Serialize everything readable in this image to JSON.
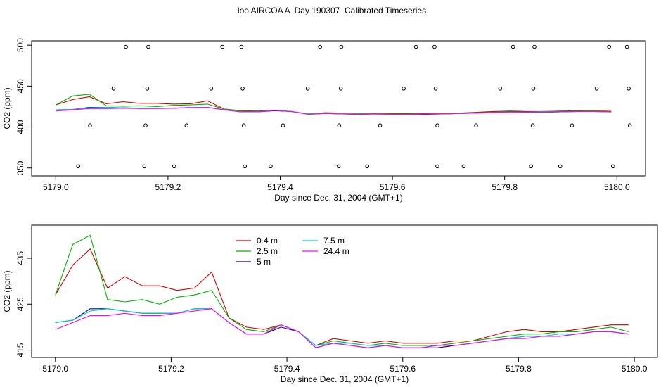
{
  "title": "loo AIRCOA A  Day 190307  Calibrated Timeseries",
  "chart_data": [
    {
      "type": "line",
      "xlabel": "Day since Dec. 31, 2004 (GMT+1)",
      "ylabel": "CO2 (ppm)",
      "xlim": [
        5178.957,
        5180.051
      ],
      "ylim": [
        340.3,
        505.3
      ],
      "xticks": [
        {
          "value": 5179.0,
          "label": "5179.0"
        },
        {
          "value": 5179.2,
          "label": "5179.2"
        },
        {
          "value": 5179.4,
          "label": "5179.4"
        },
        {
          "value": 5179.6,
          "label": "5179.6"
        },
        {
          "value": 5179.8,
          "label": "5179.8"
        },
        {
          "value": 5180.0,
          "label": "5180.0"
        }
      ],
      "yticks": [
        350,
        400,
        450,
        500
      ],
      "x": [
        5179.0,
        5179.03,
        5179.06,
        5179.09,
        5179.12,
        5179.15,
        5179.18,
        5179.21,
        5179.24,
        5179.27,
        5179.3,
        5179.33,
        5179.36,
        5179.39,
        5179.42,
        5179.45,
        5179.48,
        5179.51,
        5179.54,
        5179.57,
        5179.6,
        5179.63,
        5179.66,
        5179.69,
        5179.72,
        5179.75,
        5179.78,
        5179.81,
        5179.84,
        5179.87,
        5179.9,
        5179.93,
        5179.96,
        5179.99
      ],
      "series": [
        {
          "color": "#cc0000",
          "values": [
            427,
            433.5,
            437,
            428.5,
            431,
            429,
            429,
            428,
            428.5,
            432,
            422,
            420,
            419.5,
            420.5,
            419,
            416,
            417.5,
            417,
            416.5,
            417,
            416.5,
            416.5,
            416.5,
            417,
            417,
            418,
            419,
            419.5,
            419,
            419,
            419.5,
            420,
            420.5,
            420.5
          ]
        },
        {
          "color": "#00b000",
          "values": [
            427,
            438,
            440,
            426,
            425.5,
            426,
            425,
            426.5,
            427,
            428,
            422,
            419.5,
            419,
            420.5,
            419,
            416,
            417,
            416.5,
            416,
            416.5,
            416,
            416,
            416,
            416.5,
            417,
            417.5,
            418,
            418.5,
            418.5,
            419,
            419,
            419.5,
            420,
            419
          ]
        },
        {
          "color": "#00008b",
          "values": [
            421,
            421.5,
            424,
            424,
            423.5,
            423,
            423,
            423,
            424,
            424,
            421,
            418.5,
            418.5,
            420,
            419,
            415.5,
            416.5,
            416,
            415.5,
            416,
            415.5,
            415.5,
            415.5,
            416,
            416.5,
            417,
            417.5,
            418,
            418,
            418,
            418.5,
            419,
            419,
            418.5
          ]
        },
        {
          "color": "#00cccc",
          "values": [
            421,
            421.5,
            423.5,
            424,
            423.5,
            423,
            423,
            423,
            424,
            424,
            421,
            418.5,
            418.5,
            420.5,
            419,
            416,
            416.5,
            416.5,
            416,
            416,
            415.5,
            415.5,
            416,
            416,
            416.5,
            417,
            417.5,
            418,
            418,
            418.5,
            418.5,
            419,
            419,
            418.5
          ]
        },
        {
          "color": "#ff00ff",
          "values": [
            419.5,
            421,
            422.5,
            422.5,
            423,
            422.5,
            422.5,
            423,
            423.5,
            424,
            421,
            418.5,
            418.5,
            420.5,
            419,
            415.5,
            416.5,
            416,
            415.5,
            416,
            415.5,
            415.5,
            416,
            416,
            416.5,
            417,
            417.5,
            417.5,
            418,
            418,
            418.5,
            419,
            419,
            418.5
          ]
        }
      ],
      "points": {
        "color": "#000000",
        "x": [
          5179.04,
          5179.158,
          5179.211,
          5179.337,
          5179.383,
          5179.504,
          5179.555,
          5179.68,
          5179.727,
          5179.847,
          5179.899,
          5179.993,
          5179.061,
          5179.16,
          5179.233,
          5179.335,
          5179.405,
          5179.505,
          5179.578,
          5179.68,
          5179.749,
          5179.85,
          5179.92,
          5180.023,
          5179.103,
          5179.163,
          5179.277,
          5179.333,
          5179.449,
          5179.508,
          5179.62,
          5179.677,
          5179.792,
          5179.851,
          5179.964,
          5180.021,
          5179.125,
          5179.165,
          5179.297,
          5179.331,
          5179.471,
          5179.509,
          5179.642,
          5179.675,
          5179.815,
          5179.853,
          5179.986,
          5180.018
        ],
        "values": [
          352,
          352,
          352,
          352,
          352,
          352,
          352,
          352,
          352,
          352,
          352,
          352,
          402,
          402,
          402,
          402,
          402,
          402,
          402,
          402,
          402,
          402,
          402,
          402,
          447,
          447,
          447,
          447,
          447,
          447,
          447,
          447,
          447,
          447,
          447,
          447,
          498,
          498,
          498,
          498,
          498,
          498,
          498,
          498,
          498,
          498,
          498,
          498
        ]
      }
    },
    {
      "type": "line",
      "xlabel": "Day since Dec. 31, 2004 (GMT+1)",
      "ylabel": "CO2 (ppm)",
      "xlim": [
        5178.959,
        5180.04
      ],
      "ylim": [
        413.4,
        442.2
      ],
      "xticks": [
        {
          "value": 5179.0,
          "label": "5179.0"
        },
        {
          "value": 5179.2,
          "label": "5179.2"
        },
        {
          "value": 5179.4,
          "label": "5179.4"
        },
        {
          "value": 5179.6,
          "label": "5179.6"
        },
        {
          "value": 5179.8,
          "label": "5179.8"
        },
        {
          "value": 5180.0,
          "label": "5180.0"
        }
      ],
      "yticks": [
        415,
        425,
        435
      ],
      "x": [
        5179.0,
        5179.03,
        5179.06,
        5179.09,
        5179.12,
        5179.15,
        5179.18,
        5179.21,
        5179.24,
        5179.27,
        5179.3,
        5179.33,
        5179.36,
        5179.39,
        5179.42,
        5179.45,
        5179.48,
        5179.51,
        5179.54,
        5179.57,
        5179.6,
        5179.63,
        5179.66,
        5179.69,
        5179.72,
        5179.75,
        5179.78,
        5179.81,
        5179.84,
        5179.87,
        5179.9,
        5179.93,
        5179.96,
        5179.99
      ],
      "series": [
        {
          "name": "0.4 m",
          "color": "#cc0000",
          "values": [
            427,
            433.5,
            437,
            428.5,
            431,
            429,
            429,
            428,
            428.5,
            432,
            422,
            420,
            419.5,
            420.5,
            419,
            416,
            417.5,
            417,
            416.5,
            417,
            416.5,
            416.5,
            416.5,
            417,
            417,
            418,
            419,
            419.5,
            419,
            419,
            419.5,
            420,
            420.5,
            420.5
          ]
        },
        {
          "name": "2.5 m",
          "color": "#00b000",
          "values": [
            427,
            438,
            440,
            426,
            425.5,
            426,
            425,
            426.5,
            427,
            428,
            422,
            419.5,
            419,
            420.5,
            419,
            416,
            417,
            416.5,
            416,
            416.5,
            416,
            416,
            416,
            416.5,
            417,
            417.5,
            418,
            418.5,
            418.5,
            419,
            419,
            419.5,
            420,
            419
          ]
        },
        {
          "name": "5 m",
          "color": "#00008b",
          "values": [
            421,
            421.5,
            424,
            424,
            423.5,
            423,
            423,
            423,
            424,
            424,
            421,
            418.5,
            418.5,
            420,
            419,
            415.5,
            416.5,
            416,
            415.5,
            416,
            415.5,
            415.5,
            415.5,
            416,
            416.5,
            417,
            417.5,
            418,
            418,
            418,
            418.5,
            419,
            419,
            418.5
          ]
        },
        {
          "name": "7.5 m",
          "color": "#00cccc",
          "values": [
            421,
            421.5,
            423.5,
            424,
            423.5,
            423,
            423,
            423,
            424,
            424,
            421,
            418.5,
            418.5,
            420.5,
            419,
            416,
            416.5,
            416.5,
            416,
            416,
            415.5,
            415.5,
            416,
            416,
            416.5,
            417,
            417.5,
            418,
            418,
            418.5,
            418.5,
            419,
            419,
            418.5
          ]
        },
        {
          "name": "24.4 m",
          "color": "#ff00ff",
          "values": [
            419.5,
            421,
            422.5,
            422.5,
            423,
            422.5,
            422.5,
            423,
            423.5,
            424,
            421,
            418.5,
            418.5,
            420.5,
            419,
            415.5,
            416.5,
            416,
            415.5,
            416,
            415.5,
            415.5,
            416,
            416,
            416.5,
            417,
            417.5,
            417.5,
            418,
            418,
            418.5,
            419,
            419,
            418.5
          ]
        }
      ]
    }
  ]
}
